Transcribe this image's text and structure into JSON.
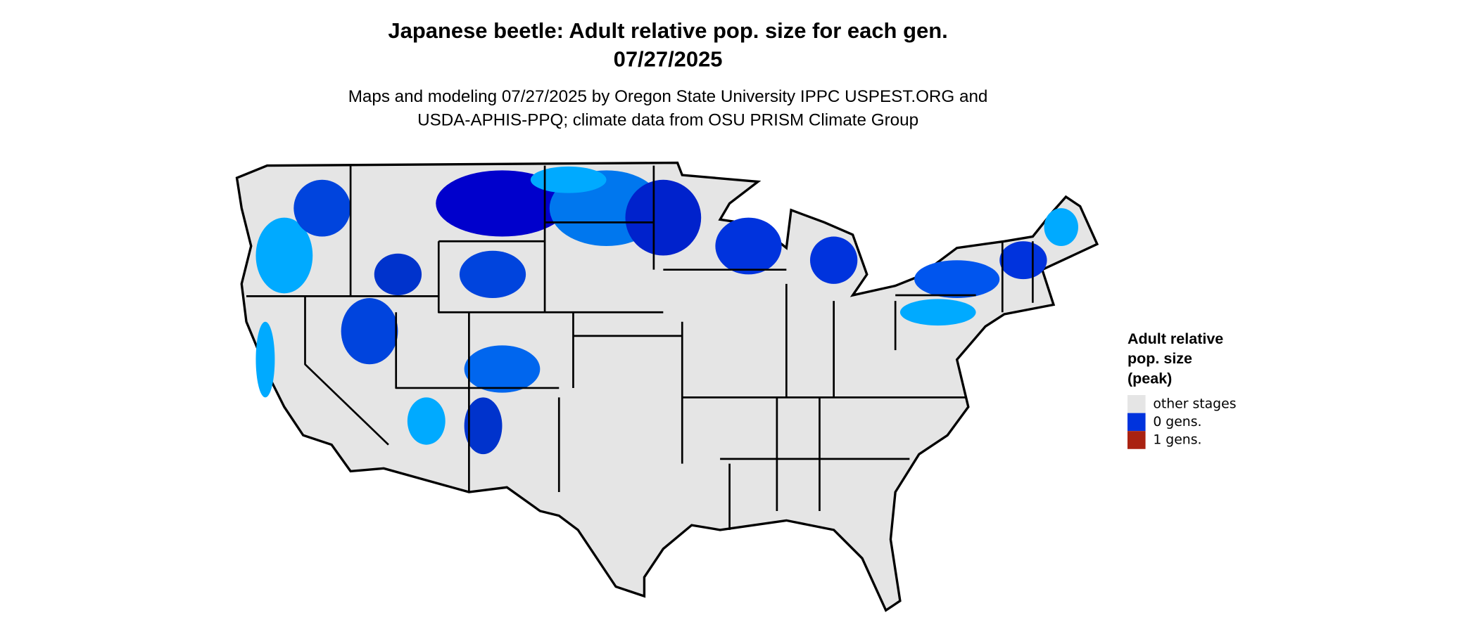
{
  "title": [
    "Japanese beetle: Adult relative pop. size for each gen.",
    "07/27/2025"
  ],
  "subtitle": [
    "Maps and modeling 07/27/2025 by Oregon State University IPPC USPEST.ORG and",
    "USDA-APHIS-PPQ; climate data from OSU PRISM Climate Group"
  ],
  "legend": {
    "title": [
      "Adult relative",
      "pop. size",
      "(peak)"
    ],
    "items": [
      {
        "label": "other stages",
        "color": "#e5e5e5"
      },
      {
        "label": "0 gens.",
        "color": "#0033dd"
      },
      {
        "label": "1 gens.",
        "color": "#aa2211"
      }
    ]
  }
}
